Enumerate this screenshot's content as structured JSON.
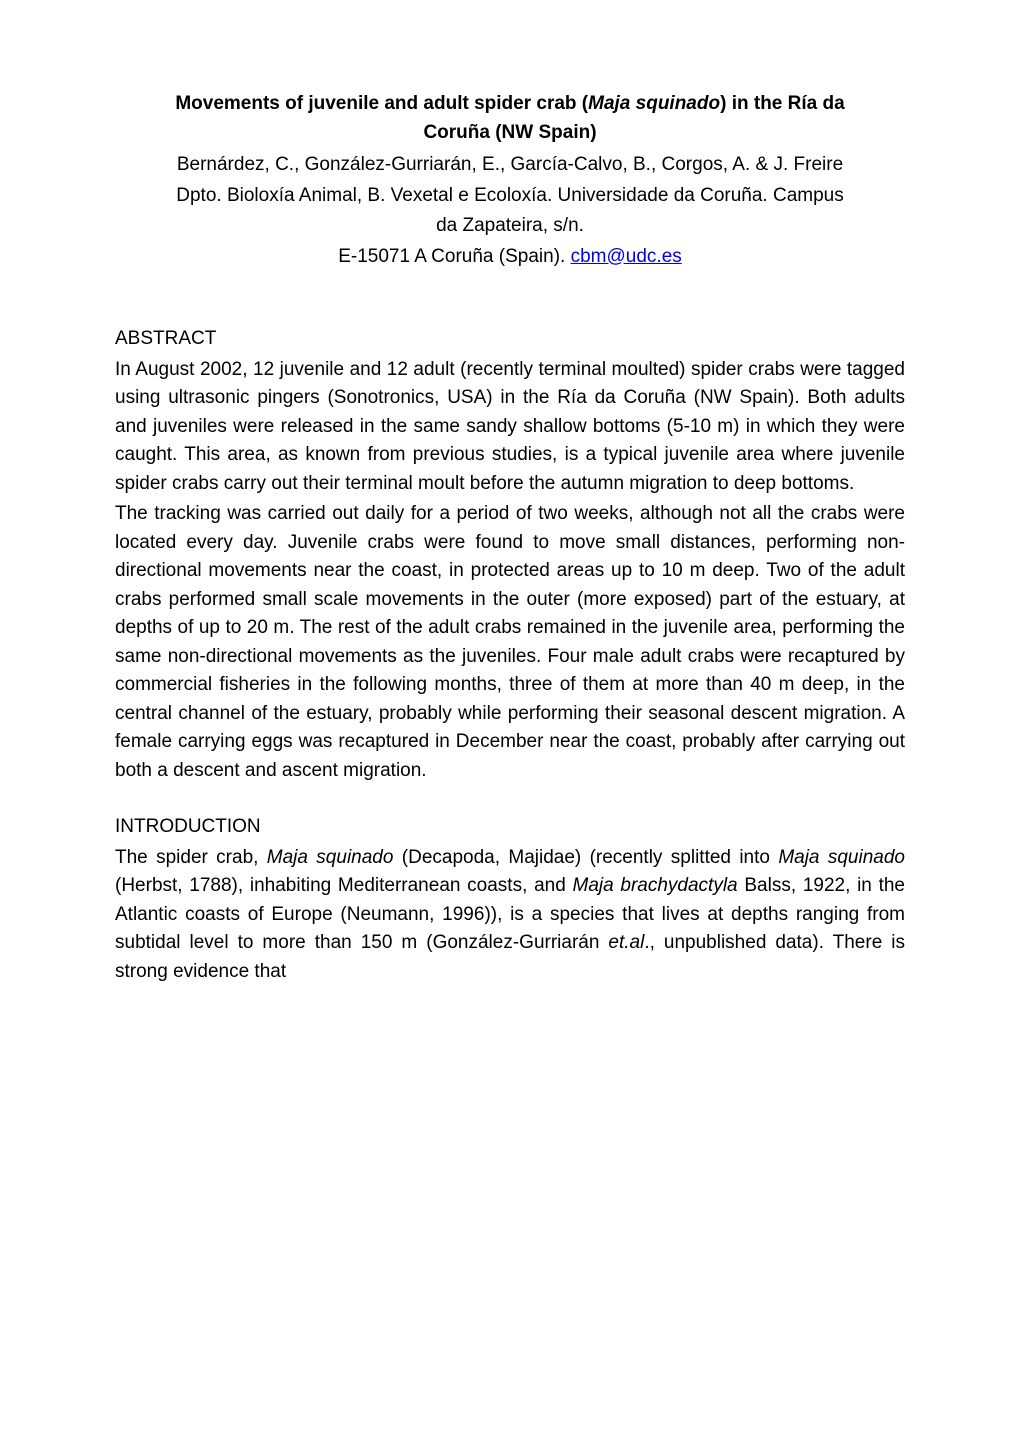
{
  "title_line1": "Movements of juvenile and adult spider crab (",
  "title_italic": "Maja squinado",
  "title_line1_end": ") in the Ría da",
  "title_line2": "Coruña (NW Spain)",
  "authors": "Bernárdez, C., González-Gurriarán, E., García-Calvo, B., Corgos, A. & J. Freire",
  "affiliation_line1": "Dpto. Bioloxía Animal, B. Vexetal e Ecoloxía. Universidade da Coruña. Campus",
  "affiliation_line2": "da Zapateira, s/n.",
  "email_prefix": "E-15071 A Coruña (Spain). ",
  "email": "cbm@udc.es",
  "abstract_heading": "ABSTRACT",
  "abstract_p1": "In August 2002, 12 juvenile and 12 adult (recently terminal moulted) spider crabs were tagged using ultrasonic pingers (Sonotronics, USA) in the Ría da Coruña (NW Spain). Both adults and juveniles were released in the same sandy shallow bottoms (5-10 m) in which they were caught. This area, as known from previous studies, is a typical juvenile area where juvenile spider crabs carry out their terminal moult before the autumn migration to deep bottoms.",
  "abstract_p2": "The tracking was carried out daily for a period of two weeks, although not all the crabs were located every day. Juvenile crabs were found to move small distances, performing non-directional movements near the coast, in protected areas up to 10 m deep. Two of the adult crabs performed small scale movements in the outer (more exposed) part of the estuary, at depths of up to 20 m. The rest of the adult crabs remained in the juvenile area, performing the same non-directional movements as the juveniles. Four male adult crabs were recaptured by commercial fisheries in the following months, three of them at more than 40 m deep, in the central channel of the estuary, probably while performing their seasonal descent migration. A female carrying eggs was recaptured in December near the coast, probably after carrying out both a descent and ascent migration.",
  "intro_heading": "INTRODUCTION",
  "intro_p1_part1": "The spider crab, ",
  "intro_p1_italic1": "Maja squinado",
  "intro_p1_part2": " (Decapoda, Majidae) (recently splitted into ",
  "intro_p1_italic2": "Maja squinado",
  "intro_p1_part3": " (Herbst, 1788), inhabiting Mediterranean coasts, and ",
  "intro_p1_italic3": "Maja brachydactyla",
  "intro_p1_part4": " Balss, 1922, in the Atlantic coasts of Europe (Neumann, 1996)), is a species that lives at depths ranging from subtidal level to more than 150 m (González-Gurriarán ",
  "intro_p1_italic4": "et.al",
  "intro_p1_part5": "., unpublished data). There is strong evidence that",
  "colors": {
    "text": "#000000",
    "background": "#ffffff",
    "link": "#0000ee"
  },
  "typography": {
    "body_fontsize": 19,
    "font_family": "Arial",
    "line_height": 1.5
  }
}
